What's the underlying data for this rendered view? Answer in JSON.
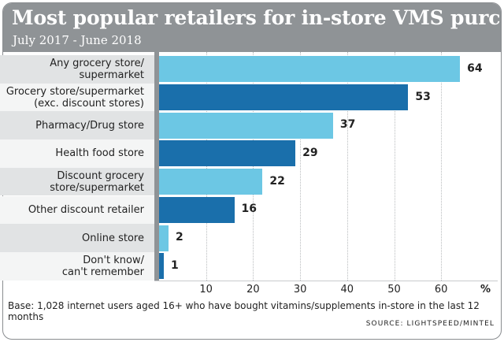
{
  "header": {
    "title": "Most popular retailers for in-store VMS purchases",
    "subtitle": "July 2017 - June 2018"
  },
  "chart_data": {
    "type": "bar",
    "orientation": "horizontal",
    "categories": [
      [
        "Any grocery store/",
        "supermarket"
      ],
      [
        "Grocery store/supermarket",
        "(exc. discount stores)"
      ],
      [
        "Pharmacy/Drug store"
      ],
      [
        "Health food store"
      ],
      [
        "Discount grocery",
        "store/supermarket"
      ],
      [
        "Other discount retailer"
      ],
      [
        "Online store"
      ],
      [
        "Don't know/",
        "can't remember"
      ]
    ],
    "values": [
      64,
      53,
      37,
      29,
      22,
      16,
      2,
      1
    ],
    "bar_colors": [
      "#6cc7e4",
      "#1a6fab",
      "#6cc7e4",
      "#1a6fab",
      "#6cc7e4",
      "#1a6fab",
      "#6cc7e4",
      "#1a6fab"
    ],
    "x_ticks": [
      "10",
      "20",
      "30",
      "40",
      "50",
      "60"
    ],
    "x_unit": "%",
    "xlim": [
      0,
      72
    ],
    "grid": true
  },
  "footer": {
    "note": "Base: 1,028 internet users aged 16+ who have bought vitamins/supplements in-store in the last 12 months",
    "source": "SOURCE: LIGHTSPEED/MINTEL"
  }
}
